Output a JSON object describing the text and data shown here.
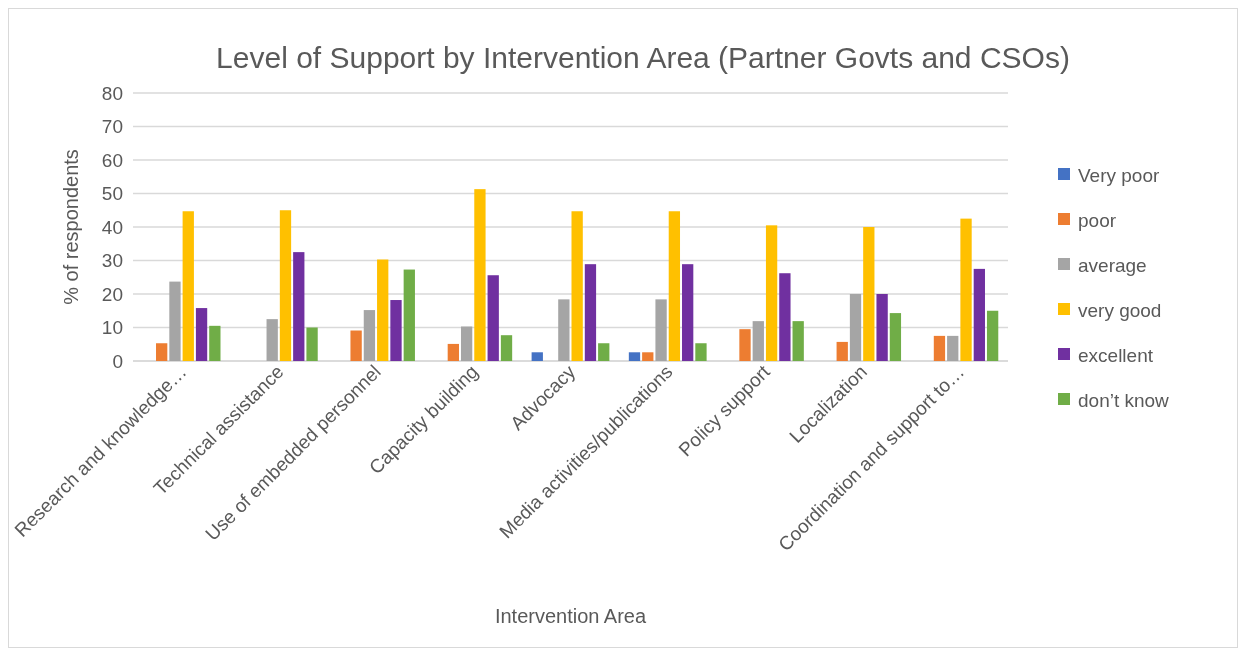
{
  "chart_data": {
    "type": "bar",
    "title": "Level of Support by Intervention Area (Partner Govts and CSOs)",
    "xlabel": "Intervention Area",
    "ylabel": "% of respondents",
    "categories": [
      "Research and knowledge…",
      "Technical assistance",
      "Use of embedded personnel",
      "Capacity building",
      "Advocacy",
      "Media activities/publications",
      "Policy support",
      "Localization",
      "Coordination and support to…"
    ],
    "series": [
      {
        "name": "Very poor",
        "color": "#4472c4",
        "values": [
          null,
          null,
          null,
          null,
          2.6,
          2.6,
          null,
          null,
          null
        ]
      },
      {
        "name": "poor",
        "color": "#ed7d31",
        "values": [
          5.3,
          null,
          9.1,
          5.1,
          null,
          2.6,
          9.5,
          5.7,
          7.5
        ]
      },
      {
        "name": "average",
        "color": "#a5a5a5",
        "values": [
          23.7,
          12.5,
          15.2,
          10.3,
          18.4,
          18.4,
          11.9,
          20,
          7.5
        ]
      },
      {
        "name": "very good",
        "color": "#ffc000",
        "values": [
          44.7,
          45,
          30.3,
          51.3,
          44.7,
          44.7,
          40.5,
          40,
          42.5
        ]
      },
      {
        "name": "excellent",
        "color": "#7030a0",
        "values": [
          15.8,
          32.5,
          18.2,
          25.6,
          28.9,
          28.9,
          26.2,
          20,
          27.5
        ]
      },
      {
        "name": "don’t know",
        "color": "#70ad47",
        "values": [
          10.5,
          10,
          27.3,
          7.7,
          5.3,
          5.3,
          11.9,
          14.3,
          15
        ]
      }
    ],
    "ylim": [
      0,
      80
    ],
    "yticks": [
      0,
      10,
      20,
      30,
      40,
      50,
      60,
      70,
      80
    ],
    "grid": "y",
    "legend": "right"
  }
}
